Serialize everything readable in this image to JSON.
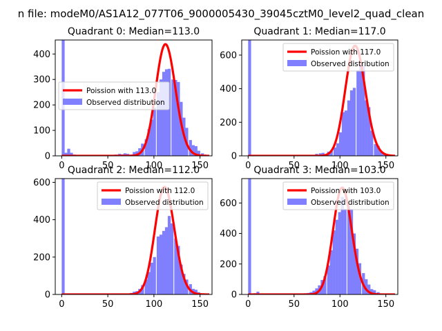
{
  "figure": {
    "suptitle": "n file: modeM0/AS1A12_077T06_9000005430_39045cztM0_level2_quad_clean"
  },
  "chart_data": [
    {
      "type": "bar",
      "title": "Quadrant 0: Median=113.0",
      "xlabel": "",
      "ylabel": "",
      "xlim": [
        -7,
        163
      ],
      "ylim": [
        0,
        455
      ],
      "xticks": [
        0,
        50,
        100,
        150
      ],
      "yticks": [
        0,
        100,
        200,
        300,
        400
      ],
      "grid": false,
      "legend_position": "center-left",
      "series": [
        {
          "name": "Poission with 113.0",
          "kind": "line",
          "color": "#ff0000",
          "mean": 113.0,
          "peak": 438
        },
        {
          "name": "Observed distribution",
          "kind": "histogram",
          "color": "#8080ff",
          "bin_width": 3.2,
          "bins": [
            [
              0,
              455
            ],
            [
              3,
              12
            ],
            [
              6,
              28
            ],
            [
              9,
              12
            ],
            [
              12,
              5
            ],
            [
              57,
              5
            ],
            [
              61,
              8
            ],
            [
              64,
              6
            ],
            [
              67,
              10
            ],
            [
              70,
              8
            ],
            [
              74,
              5
            ],
            [
              77,
              15
            ],
            [
              80,
              18
            ],
            [
              83,
              30
            ],
            [
              86,
              48
            ],
            [
              90,
              65
            ],
            [
              93,
              105
            ],
            [
              96,
              142
            ],
            [
              99,
              190
            ],
            [
              103,
              250
            ],
            [
              106,
              300
            ],
            [
              109,
              330
            ],
            [
              112,
              340
            ],
            [
              115,
              342
            ],
            [
              119,
              300
            ],
            [
              122,
              298
            ],
            [
              125,
              290
            ],
            [
              128,
              212
            ],
            [
              131,
              150
            ],
            [
              134,
              110
            ],
            [
              138,
              62
            ],
            [
              141,
              42
            ],
            [
              144,
              38
            ],
            [
              147,
              20
            ],
            [
              151,
              10
            ],
            [
              154,
              5
            ]
          ]
        }
      ]
    },
    {
      "type": "bar",
      "title": "Quadrant 1: Median=117.0",
      "xlabel": "",
      "ylabel": "",
      "xlim": [
        -7,
        163
      ],
      "ylim": [
        0,
        690
      ],
      "xticks": [
        0,
        50,
        100,
        150
      ],
      "yticks": [
        0,
        200,
        400,
        600
      ],
      "grid": false,
      "legend_position": "top-right",
      "series": [
        {
          "name": "Poission with 117.0",
          "kind": "line",
          "color": "#ff0000",
          "mean": 117.0,
          "peak": 655
        },
        {
          "name": "Observed distribution",
          "kind": "histogram",
          "color": "#8080ff",
          "bin_width": 3.2,
          "bins": [
            [
              0,
              690
            ],
            [
              67,
              5
            ],
            [
              73,
              12
            ],
            [
              77,
              15
            ],
            [
              80,
              18
            ],
            [
              86,
              25
            ],
            [
              89,
              30
            ],
            [
              93,
              50
            ],
            [
              96,
              75
            ],
            [
              99,
              140
            ],
            [
              102,
              260
            ],
            [
              105,
              270
            ],
            [
              108,
              330
            ],
            [
              111,
              390
            ],
            [
              114,
              405
            ],
            [
              118,
              510
            ],
            [
              121,
              550
            ],
            [
              124,
              540
            ],
            [
              127,
              330
            ],
            [
              130,
              290
            ],
            [
              133,
              150
            ],
            [
              137,
              70
            ],
            [
              140,
              60
            ],
            [
              143,
              30
            ],
            [
              146,
              15
            ],
            [
              150,
              5
            ]
          ]
        }
      ]
    },
    {
      "type": "bar",
      "title": "Quadrant 2: Median=112.0",
      "xlabel": "",
      "ylabel": "",
      "xlim": [
        -7,
        163
      ],
      "ylim": [
        0,
        620
      ],
      "xticks": [
        0,
        50,
        100,
        150
      ],
      "yticks": [
        0,
        200,
        400,
        600
      ],
      "grid": false,
      "legend_position": "top-right",
      "series": [
        {
          "name": "Poission with 112.0",
          "kind": "line",
          "color": "#ff0000",
          "mean": 112.0,
          "peak": 575
        },
        {
          "name": "Observed distribution",
          "kind": "histogram",
          "color": "#8080ff",
          "bin_width": 3.2,
          "bins": [
            [
              0,
              620
            ],
            [
              70,
              5
            ],
            [
              74,
              8
            ],
            [
              77,
              15
            ],
            [
              80,
              18
            ],
            [
              83,
              30
            ],
            [
              86,
              50
            ],
            [
              90,
              80
            ],
            [
              93,
              120
            ],
            [
              96,
              170
            ],
            [
              99,
              200
            ],
            [
              103,
              310
            ],
            [
              106,
              320
            ],
            [
              109,
              340
            ],
            [
              112,
              360
            ],
            [
              115,
              420
            ],
            [
              118,
              380
            ],
            [
              122,
              300
            ],
            [
              125,
              260
            ],
            [
              128,
              160
            ],
            [
              131,
              110
            ],
            [
              134,
              80
            ],
            [
              138,
              55
            ],
            [
              141,
              30
            ],
            [
              144,
              25
            ],
            [
              147,
              12
            ],
            [
              151,
              5
            ]
          ]
        }
      ]
    },
    {
      "type": "bar",
      "title": "Quadrant 3: Median=103.0",
      "xlabel": "",
      "ylabel": "",
      "xlim": [
        -7,
        163
      ],
      "ylim": [
        0,
        760
      ],
      "xticks": [
        0,
        50,
        100,
        150
      ],
      "yticks": [
        0,
        200,
        400,
        600
      ],
      "grid": false,
      "legend_position": "top-right",
      "series": [
        {
          "name": "Poission with 103.0",
          "kind": "line",
          "color": "#ff0000",
          "mean": 103.0,
          "peak": 700
        },
        {
          "name": "Observed distribution",
          "kind": "histogram",
          "color": "#8080ff",
          "bin_width": 3.2,
          "bins": [
            [
              0,
              760
            ],
            [
              3,
              5
            ],
            [
              6,
              8
            ],
            [
              9,
              18
            ],
            [
              13,
              6
            ],
            [
              58,
              5
            ],
            [
              61,
              8
            ],
            [
              64,
              10
            ],
            [
              67,
              15
            ],
            [
              70,
              25
            ],
            [
              73,
              40
            ],
            [
              76,
              60
            ],
            [
              79,
              95
            ],
            [
              82,
              120
            ],
            [
              86,
              190
            ],
            [
              89,
              290
            ],
            [
              92,
              420
            ],
            [
              95,
              490
            ],
            [
              98,
              540
            ],
            [
              101,
              640
            ],
            [
              104,
              560
            ],
            [
              108,
              580
            ],
            [
              111,
              560
            ],
            [
              114,
              400
            ],
            [
              117,
              300
            ],
            [
              120,
              205
            ],
            [
              124,
              140
            ],
            [
              127,
              100
            ],
            [
              130,
              65
            ],
            [
              133,
              35
            ],
            [
              136,
              28
            ],
            [
              140,
              15
            ],
            [
              143,
              5
            ]
          ]
        }
      ]
    }
  ]
}
